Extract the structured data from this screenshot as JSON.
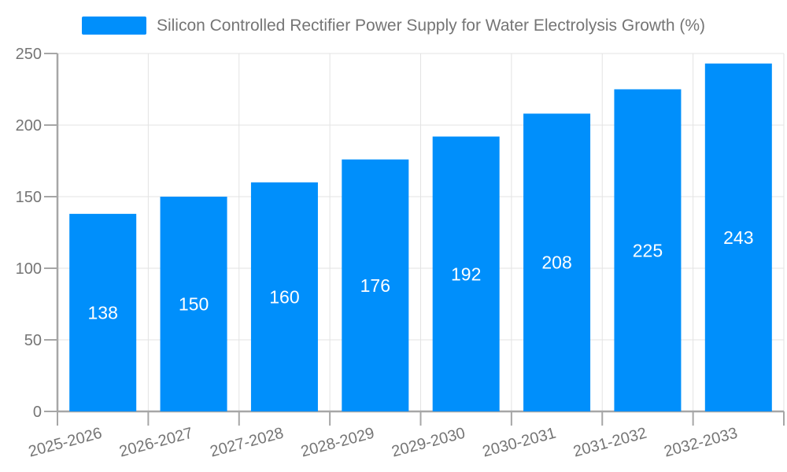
{
  "legend": {
    "label": "Silicon Controlled Rectifier Power Supply for Water Electrolysis Growth (%)"
  },
  "chart_data": {
    "type": "bar",
    "title": "Silicon Controlled Rectifier Power Supply for Water Electrolysis Growth (%)",
    "categories": [
      "2025-2026",
      "2026-2027",
      "2027-2028",
      "2028-2029",
      "2029-2030",
      "2030-2031",
      "2031-2032",
      "2032-2033"
    ],
    "series": [
      {
        "name": "Silicon Controlled Rectifier Power Supply for Water Electrolysis Growth (%)",
        "values": [
          138,
          150,
          160,
          176,
          192,
          208,
          225,
          243
        ]
      }
    ],
    "xlabel": "",
    "ylabel": "",
    "ylim": [
      0,
      250
    ],
    "yticks": [
      0,
      50,
      100,
      150,
      200,
      250
    ],
    "grid": true,
    "legend_position": "top",
    "x_label_rotation": -15,
    "value_labels_shown": true,
    "colors": {
      "bar": "#008FFB",
      "grid": "#e3e3e3",
      "axis": "#a6a6a6",
      "tick_text": "#757575",
      "value_text": "#ffffff",
      "background": "#ffffff"
    }
  }
}
